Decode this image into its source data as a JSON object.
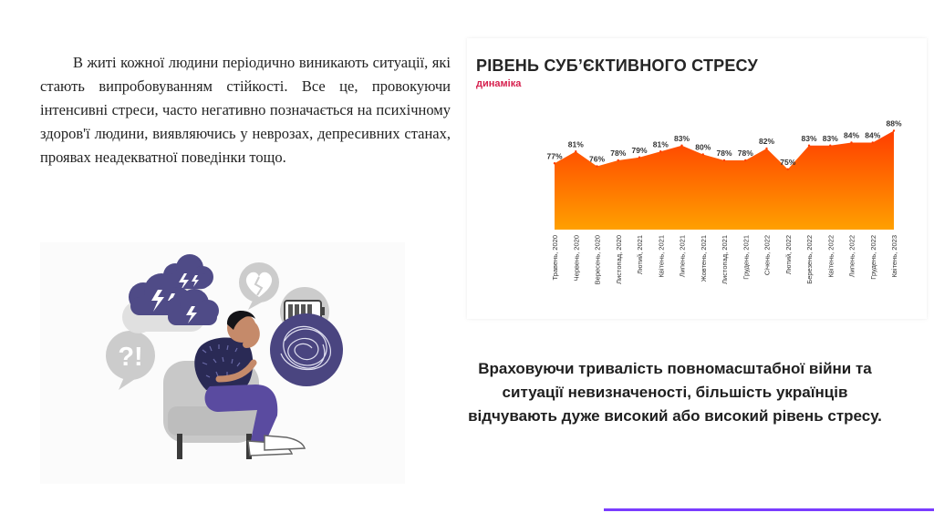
{
  "intro_text": "В житі кожної людини періодично виникають ситуації, які стають випробовуванням стійкості. Все це, провокуючи інтенсивні стреси, часто негативно позначається на психічному здоров'ї людини, виявляючись у неврозах, депресивних станах, проявах неадекватної поведінки тощо.",
  "conclusion_text": "Враховуючи тривалість повномасштабної війни  та ситуації невизначеності, більшість українців відчувають дуже високий або високий рівень стресу.",
  "illustration": {
    "symbol_text": "?!"
  },
  "chart_data": {
    "type": "area",
    "title": "РІВЕНЬ СУБ’ЄКТИВНОГО СТРЕСУ",
    "subtitle": "динаміка",
    "categories": [
      "Травень, 2020",
      "Червень, 2020",
      "Вересень, 2020",
      "Листопад, 2020",
      "Лютий, 2021",
      "Квітень, 2021",
      "Липень, 2021",
      "Жовтень, 2021",
      "Листопад, 2021",
      "Грудень, 2021",
      "Січень, 2022",
      "Лютий, 2022",
      "Березень, 2022",
      "Квітень, 2022",
      "Липень, 2022",
      "Грудень, 2022",
      "Квітень, 2023"
    ],
    "values": [
      77,
      81,
      76,
      78,
      79,
      81,
      83,
      80,
      78,
      78,
      82,
      75,
      83,
      83,
      84,
      84,
      88
    ],
    "value_labels": [
      "77%",
      "81%",
      "76%",
      "78%",
      "79%",
      "81%",
      "83%",
      "80%",
      "78%",
      "78%",
      "82%",
      "75%",
      "83%",
      "83%",
      "84%",
      "84%",
      "88%"
    ],
    "colors": {
      "top": "#ff3d00",
      "bottom": "#ffa000",
      "title": "#252525",
      "subtitle": "#d6204e"
    }
  },
  "colors": {
    "accent_line": "#7a3cff",
    "cloud": "#4f4b87",
    "bubble": "#cccccc",
    "chair": "#c8c8c8",
    "shirt": "#2a2a55",
    "pants": "#5a4ba0"
  }
}
